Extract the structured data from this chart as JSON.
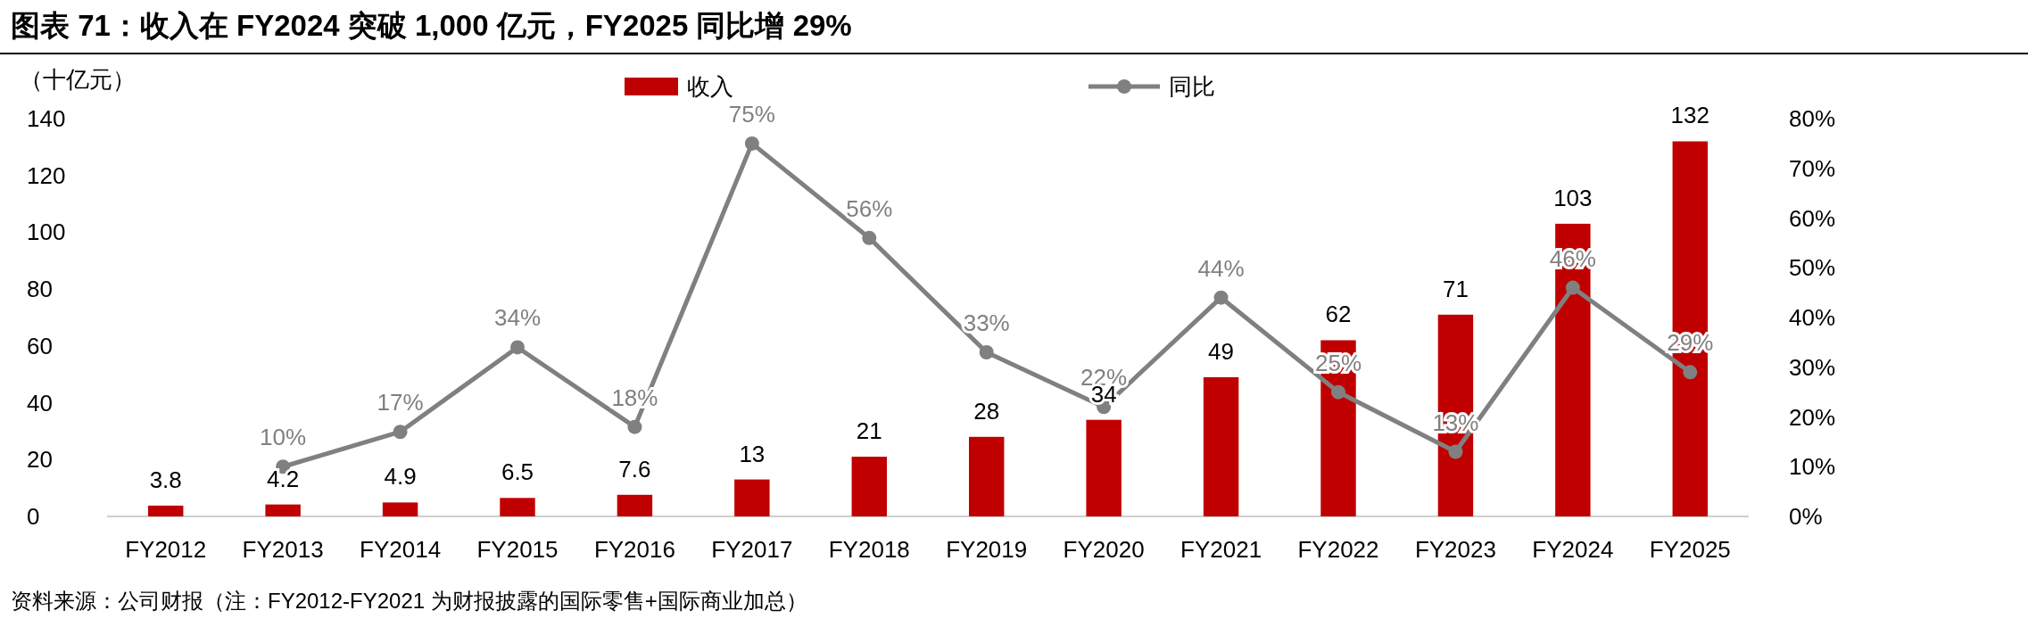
{
  "chart_data": {
    "type": "bar",
    "title": "图表 71：收入在 FY2024 突破 1,000 亿元，FY2025 同比增 29%",
    "ylabel": "（十亿元）",
    "categories": [
      "FY2012",
      "FY2013",
      "FY2014",
      "FY2015",
      "FY2016",
      "FY2017",
      "FY2018",
      "FY2019",
      "FY2020",
      "FY2021",
      "FY2022",
      "FY2023",
      "FY2024",
      "FY2025"
    ],
    "series": [
      {
        "name": "收入",
        "color": "#c00000",
        "values": [
          3.8,
          4.2,
          4.9,
          6.5,
          7.6,
          13,
          21,
          28,
          34,
          49,
          62,
          71,
          103,
          132
        ]
      },
      {
        "name": "同比",
        "type": "line",
        "axis": "y2",
        "color": "#808080",
        "marker": "circle",
        "values": [
          null,
          10,
          17,
          34,
          18,
          75,
          56,
          33,
          22,
          44,
          25,
          13,
          46,
          29
        ],
        "value_labels": [
          null,
          "10%",
          "17%",
          "34%",
          "18%",
          "75%",
          "56%",
          "33%",
          "22%",
          "44%",
          "25%",
          "13%",
          "46%",
          "29%"
        ]
      }
    ],
    "ylim": [
      0,
      140
    ],
    "yticks": [
      0,
      20,
      40,
      60,
      80,
      100,
      120,
      140
    ],
    "y2lim": [
      0,
      80
    ],
    "y2ticks": [
      {
        "value": 0,
        "label": "0%"
      },
      {
        "value": 10,
        "label": "10%"
      },
      {
        "value": 20,
        "label": "20%"
      },
      {
        "value": 30,
        "label": "30%"
      },
      {
        "value": 40,
        "label": "40%"
      },
      {
        "value": 50,
        "label": "50%"
      },
      {
        "value": 60,
        "label": "60%"
      },
      {
        "value": 70,
        "label": "70%"
      },
      {
        "value": 80,
        "label": "80%"
      }
    ],
    "data_labels": true,
    "legend": "top",
    "grid": false,
    "annotations": [
      "资料来源：公司财报（注：FY2012-FY2021 为财报披露的国际零售+国际商业加总）"
    ]
  }
}
